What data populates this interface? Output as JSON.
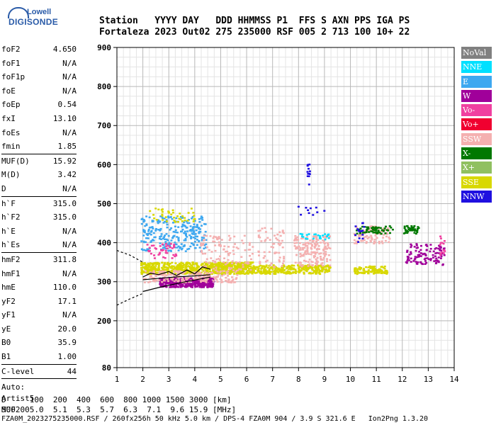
{
  "logo": {
    "top": "Lowell",
    "name": "DIGISONDE"
  },
  "header": {
    "line1": "Station   YYYY DAY   DDD HHMMSS P1  FFS S AXN PPS IGA PS",
    "line2": "Fortaleza 2023 Out02 275 235000 RSF 005 2 713 100 10+ 22"
  },
  "params": [
    {
      "k": "foF2",
      "v": "4.650"
    },
    {
      "k": "foF1",
      "v": "N/A"
    },
    {
      "k": "foF1p",
      "v": "N/A"
    },
    {
      "k": "foE",
      "v": "N/A"
    },
    {
      "k": "foEp",
      "v": "0.54"
    },
    {
      "k": "fxI",
      "v": "13.10"
    },
    {
      "k": "foEs",
      "v": "N/A"
    },
    {
      "k": "fmin",
      "v": "1.85"
    },
    {
      "k": "MUF(D)",
      "v": "15.92"
    },
    {
      "k": "M(D)",
      "v": "3.42"
    },
    {
      "k": "D",
      "v": "N/A"
    },
    {
      "k": "h`F",
      "v": "315.0"
    },
    {
      "k": "h`F2",
      "v": "315.0"
    },
    {
      "k": "h`E",
      "v": "N/A"
    },
    {
      "k": "h`Es",
      "v": "N/A"
    },
    {
      "k": "hmF2",
      "v": "311.8"
    },
    {
      "k": "hmF1",
      "v": "N/A"
    },
    {
      "k": "hmE",
      "v": "110.0"
    },
    {
      "k": "yF2",
      "v": "17.1"
    },
    {
      "k": "yF1",
      "v": "N/A"
    },
    {
      "k": "yE",
      "v": "20.0"
    },
    {
      "k": "B0",
      "v": "35.9"
    },
    {
      "k": "B1",
      "v": "1.00"
    },
    {
      "k": "C-level",
      "v": "44"
    }
  ],
  "auto": {
    "l1": "Auto:",
    "l2": "Artist5",
    "l3": "500200"
  },
  "legend": [
    {
      "label": "NoVal",
      "color": "#808080"
    },
    {
      "label": "NNE",
      "color": "#00e0ff"
    },
    {
      "label": "E",
      "color": "#3ea8f0"
    },
    {
      "label": "W",
      "color": "#a0009a"
    },
    {
      "label": "Vo-",
      "color": "#f040a0"
    },
    {
      "label": "Vo+",
      "color": "#f00030"
    },
    {
      "label": "SSW",
      "color": "#f4b0b0"
    },
    {
      "label": "X-",
      "color": "#007800"
    },
    {
      "label": "X+",
      "color": "#90c060"
    },
    {
      "label": "SSE",
      "color": "#d8d800"
    },
    {
      "label": "NNW",
      "color": "#2010e0"
    }
  ],
  "chart_data": {
    "type": "scatter",
    "title": "",
    "xlabel": "",
    "ylabel": "",
    "xlim": [
      1,
      14
    ],
    "ylim": [
      80,
      900
    ],
    "x_ticks": [
      "1",
      "2",
      "3",
      "4",
      "5",
      "6",
      "7",
      "8",
      "9",
      "10",
      "11",
      "12",
      "13",
      "14"
    ],
    "y_ticks": [
      "80",
      "200",
      "300",
      "400",
      "500",
      "600",
      "700",
      "800",
      "900"
    ],
    "grid": true
  },
  "footer": {
    "line1": "D     100  200  400  600  800 1000 1500 3000 [km]",
    "line2": "MUF   5.0  5.1  5.3  5.7  6.3  7.1  9.6 15.9 [MHz]",
    "line3": "FZA0M_2023275235000.RSF / 260fx256h 50 kHz 5.0 km / DPS-4 FZA0M 904 / 3.9 S 321.6 E   Ion2Png 1.3.20"
  }
}
